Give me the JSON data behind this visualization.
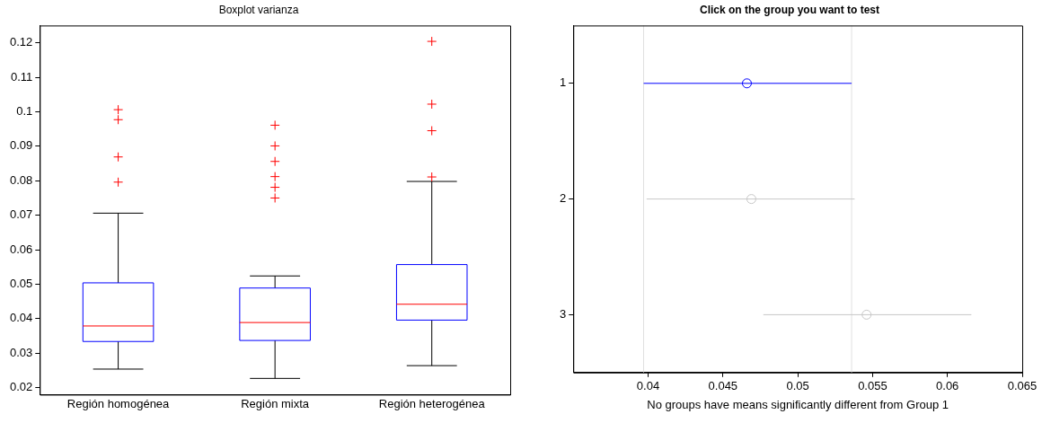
{
  "chart_data": [
    {
      "type": "box",
      "title": "Boxplot varianza",
      "categories": [
        "Región homogénea",
        "Región mixta",
        "Región heterogénea"
      ],
      "color": "#0000ff",
      "marker": "cross",
      "ylim": [
        0.018,
        0.125
      ],
      "yticks": [
        0.02,
        0.03,
        0.04,
        0.05,
        0.06,
        0.07,
        0.08,
        0.09,
        0.1,
        0.11,
        0.12
      ],
      "grid": false,
      "boxes": [
        {
          "low": 0.0254,
          "q1": 0.0334,
          "median": 0.0379,
          "q3": 0.0504,
          "high": 0.0706,
          "outliers": [
            0.1006,
            0.0977,
            0.0869,
            0.0796
          ]
        },
        {
          "low": 0.0227,
          "q1": 0.0337,
          "median": 0.0389,
          "q3": 0.0489,
          "high": 0.0524,
          "outliers": [
            0.0961,
            0.0901,
            0.0856,
            0.0812,
            0.0781,
            0.075
          ]
        },
        {
          "low": 0.0264,
          "q1": 0.0396,
          "median": 0.0442,
          "q3": 0.0557,
          "high": 0.0798,
          "outliers": [
            0.1204,
            0.1022,
            0.0945,
            0.0811
          ]
        }
      ]
    },
    {
      "type": "scatter",
      "title": "Click on the group you want to test",
      "xlabel": "No groups have means significantly different from Group 1",
      "orientation": "horizontal",
      "categories": [
        "1",
        "2",
        "3"
      ],
      "values": [
        0.0466,
        0.0469,
        0.0546
      ],
      "errors": [
        [
          0.0397,
          0.0536
        ],
        [
          0.0399,
          0.0538
        ],
        [
          0.0477,
          0.0616
        ]
      ],
      "colors": [
        "#0000ff",
        "#c8c8c8",
        "#c8c8c8"
      ],
      "marker": "circle",
      "xlim": [
        0.035,
        0.065
      ],
      "xticks": [
        0.04,
        0.045,
        0.05,
        0.055,
        0.06,
        0.065
      ],
      "grid": false,
      "ref_lines": [
        {
          "axis": "x",
          "value": 0.0397,
          "color": "#e0e0e0"
        },
        {
          "axis": "x",
          "value": 0.0536,
          "color": "#e0e0e0"
        }
      ]
    }
  ]
}
